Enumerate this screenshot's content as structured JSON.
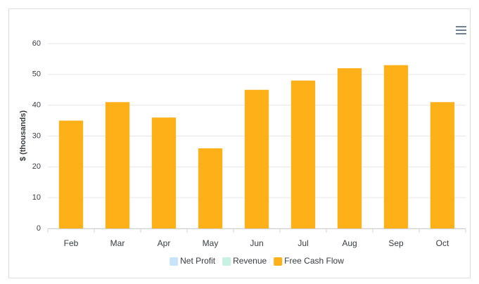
{
  "chart_data": {
    "type": "bar",
    "categories": [
      "Feb",
      "Mar",
      "Apr",
      "May",
      "Jun",
      "Jul",
      "Aug",
      "Sep",
      "Oct"
    ],
    "series": [
      {
        "name": "Net Profit",
        "color": "#c7e4fb",
        "hidden": true,
        "values": [
          null,
          null,
          null,
          null,
          null,
          null,
          null,
          null,
          null
        ]
      },
      {
        "name": "Revenue",
        "color": "#c6f1e3",
        "hidden": true,
        "values": [
          null,
          null,
          null,
          null,
          null,
          null,
          null,
          null,
          null
        ]
      },
      {
        "name": "Free Cash Flow",
        "color": "#feb019",
        "hidden": false,
        "values": [
          35,
          41,
          36,
          26,
          45,
          48,
          52,
          53,
          41
        ]
      }
    ],
    "y_label": "$ (thousands)",
    "ylim": [
      0,
      60
    ],
    "yticks": [
      0,
      10,
      20,
      30,
      40,
      50,
      60
    ],
    "grid": true,
    "legend": "bottom"
  }
}
